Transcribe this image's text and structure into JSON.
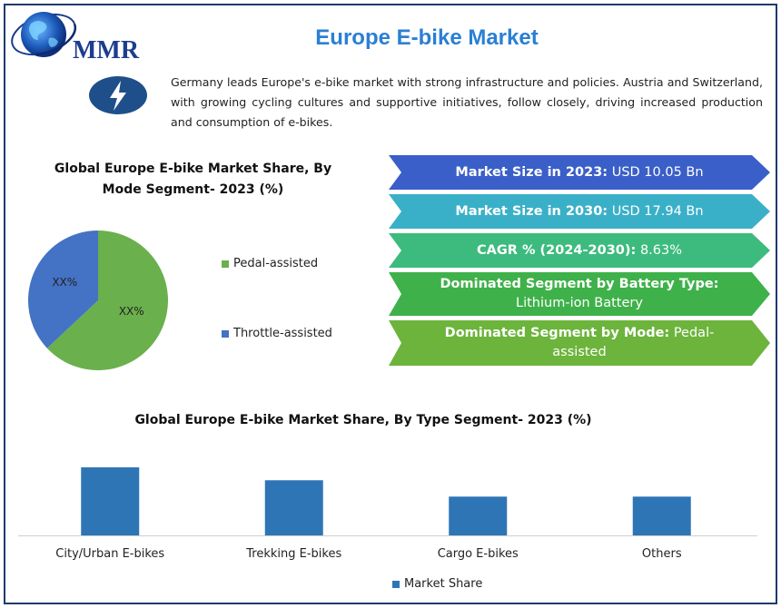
{
  "header": {
    "logo_text": "MMR",
    "title": "Europe E-bike Market",
    "intro": "Germany leads Europe's e-bike market with strong infrastructure and policies. Austria and Switzerland, with growing cycling cultures and supportive initiatives, follow closely, driving increased production and consumption of e-bikes."
  },
  "highlights": [
    {
      "label": "Market Size in 2023:",
      "value": "USD 10.05 Bn",
      "color": "#3a5fc8"
    },
    {
      "label": "Market Size in 2030:",
      "value": "USD 17.94 Bn",
      "color": "#3ab0c8"
    },
    {
      "label": "CAGR % (2024-2030):",
      "value": "8.63%",
      "color": "#3dbb7e"
    },
    {
      "label": "Dominated Segment by Battery Type:",
      "value": "Lithium-ion Battery",
      "color": "#3fb14a"
    },
    {
      "label": "Dominated Segment by Mode:",
      "value": "Pedal-assisted",
      "color": "#6cb43c"
    }
  ],
  "chart_data": [
    {
      "type": "pie",
      "title": "Global Europe E-bike Market Share, By Mode Segment- 2023 (%)",
      "labels": [
        "Pedal-assisted",
        "Throttle-assisted"
      ],
      "values": [
        63,
        37
      ],
      "data_labels": [
        "XX%",
        "XX%"
      ],
      "colors": [
        "#6ab04c",
        "#4472c4"
      ],
      "legend_position": "right"
    },
    {
      "type": "bar",
      "title": "Global Europe E-bike Market Share, By Type Segment- 2023 (%)",
      "categories": [
        "City/Urban E-bikes",
        "Trekking E-bikes",
        "Cargo E-bikes",
        "Others"
      ],
      "series": [
        {
          "name": "Market Share",
          "values": [
            100,
            81,
            57,
            57
          ]
        }
      ],
      "ylim": [
        0,
        100
      ],
      "color": "#2e75b6",
      "grid": false,
      "legend_position": "bottom"
    }
  ]
}
